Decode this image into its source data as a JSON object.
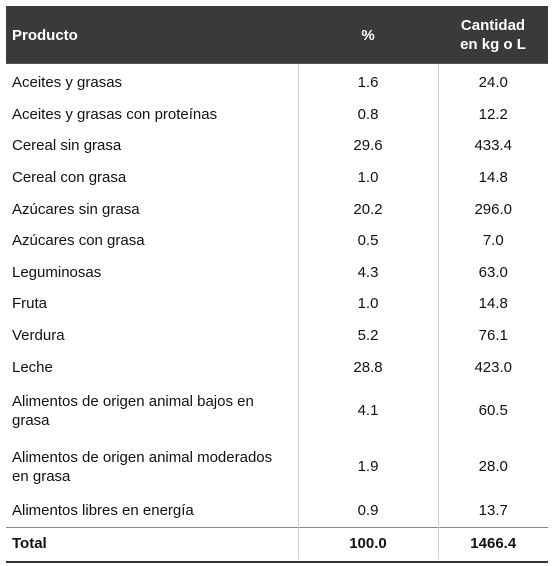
{
  "table": {
    "headers": {
      "product": "Producto",
      "percent": "%",
      "quantity_line1": "Cantidad",
      "quantity_line2": "en kg o L"
    },
    "rows": [
      {
        "product": "Aceites y grasas",
        "percent": "1.6",
        "quantity": "24.0"
      },
      {
        "product": "Aceites y grasas con proteínas",
        "percent": "0.8",
        "quantity": "12.2"
      },
      {
        "product": "Cereal sin grasa",
        "percent": "29.6",
        "quantity": "433.4"
      },
      {
        "product": "Cereal con grasa",
        "percent": "1.0",
        "quantity": "14.8"
      },
      {
        "product": "Azúcares sin grasa",
        "percent": "20.2",
        "quantity": "296.0"
      },
      {
        "product": "Azúcares con grasa",
        "percent": "0.5",
        "quantity": "7.0"
      },
      {
        "product": "Leguminosas",
        "percent": "4.3",
        "quantity": "63.0"
      },
      {
        "product": "Fruta",
        "percent": "1.0",
        "quantity": "14.8"
      },
      {
        "product": "Verdura",
        "percent": "5.2",
        "quantity": "76.1"
      },
      {
        "product": "Leche",
        "percent": "28.8",
        "quantity": "423.0"
      },
      {
        "product": "Alimentos de origen animal bajos en grasa",
        "percent": "4.1",
        "quantity": "60.5"
      },
      {
        "product": "Alimentos de origen animal moderados en grasa",
        "percent": "1.9",
        "quantity": "28.0"
      },
      {
        "product": "Alimentos libres en energía",
        "percent": "0.9",
        "quantity": "13.7"
      }
    ],
    "total": {
      "label": "Total",
      "percent": "100.0",
      "quantity": "1466.4"
    }
  }
}
